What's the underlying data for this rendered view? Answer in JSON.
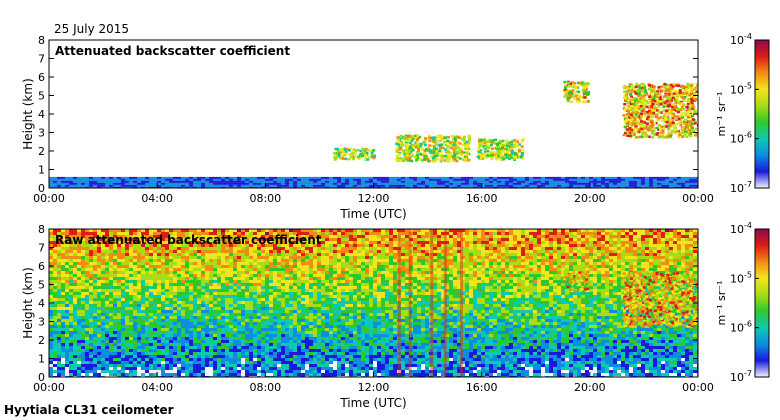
{
  "date": "25 July 2015",
  "footer": "Hyytiala CL31 ceilometer",
  "colormap": [
    "#f4f4ff",
    "#1a1adc",
    "#0d8de0",
    "#0fc8b0",
    "#2ec82e",
    "#a8dc14",
    "#f4e41e",
    "#f08c14",
    "#dc1e14",
    "#8c0a50"
  ],
  "chart_data": [
    {
      "type": "heatmap",
      "title": "Attenuated backscatter coefficient",
      "xlabel": "Time (UTC)",
      "ylabel": "Height (km)",
      "xticks": [
        "00:00",
        "04:00",
        "08:00",
        "12:00",
        "16:00",
        "20:00",
        "00:00"
      ],
      "xlim": [
        0,
        24
      ],
      "ylim": [
        0,
        8
      ],
      "yticks": [
        0,
        1,
        2,
        3,
        4,
        5,
        6,
        7,
        8
      ],
      "features": [
        {
          "name": "boundary-layer",
          "x": [
            0,
            24
          ],
          "y": [
            0,
            0.6
          ],
          "level": 0.3
        },
        {
          "name": "cloud-a",
          "x": [
            10.5,
            12.0
          ],
          "y": [
            1.6,
            2.2
          ],
          "level": 0.75
        },
        {
          "name": "cloud-b",
          "x": [
            12.8,
            15.5
          ],
          "y": [
            1.5,
            2.9
          ],
          "level": 0.8
        },
        {
          "name": "cloud-c",
          "x": [
            15.8,
            17.5
          ],
          "y": [
            1.6,
            2.7
          ],
          "level": 0.78
        },
        {
          "name": "cloud-d",
          "x": [
            19.0,
            19.9
          ],
          "y": [
            4.7,
            5.8
          ],
          "level": 0.88
        },
        {
          "name": "cloud-e",
          "x": [
            21.2,
            24
          ],
          "y": [
            2.8,
            5.7
          ],
          "level": 0.92
        }
      ]
    },
    {
      "type": "heatmap",
      "title": "Raw attenuated backscatter coefficient",
      "xlabel": "Time (UTC)",
      "ylabel": "Height (km)",
      "xticks": [
        "00:00",
        "04:00",
        "08:00",
        "12:00",
        "16:00",
        "20:00",
        "00:00"
      ],
      "xlim": [
        0,
        24
      ],
      "ylim": [
        0,
        8
      ],
      "yticks": [
        0,
        1,
        2,
        3,
        4,
        5,
        6,
        7,
        8
      ],
      "features": [
        {
          "name": "noise-field",
          "x": [
            0,
            24
          ],
          "y": [
            0,
            8
          ],
          "level": 0.55
        },
        {
          "name": "cloud-d",
          "x": [
            19.0,
            19.9
          ],
          "y": [
            4.7,
            5.8
          ],
          "level": 0.88
        },
        {
          "name": "cloud-e",
          "x": [
            21.2,
            24
          ],
          "y": [
            2.8,
            5.7
          ],
          "level": 0.92
        }
      ]
    }
  ],
  "colorbar": {
    "label": "m⁻¹ sr⁻¹",
    "ticks": [
      {
        "base": "10",
        "exp": "-4"
      },
      {
        "base": "10",
        "exp": "-5"
      },
      {
        "base": "10",
        "exp": "-6"
      },
      {
        "base": "10",
        "exp": "-7"
      }
    ]
  }
}
